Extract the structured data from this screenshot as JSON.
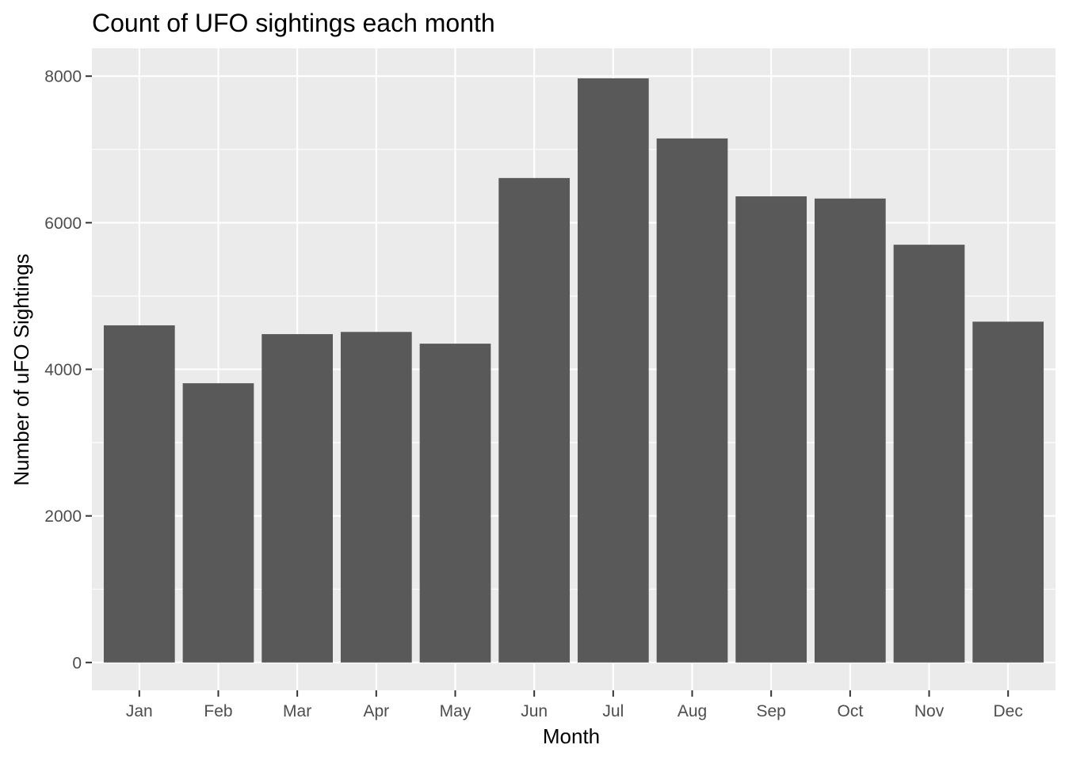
{
  "chart_data": {
    "type": "bar",
    "title": "Count of UFO sightings each month",
    "xlabel": "Month",
    "ylabel": "Number of uFO Sightings",
    "categories": [
      "Jan",
      "Feb",
      "Mar",
      "Apr",
      "May",
      "Jun",
      "Jul",
      "Aug",
      "Sep",
      "Oct",
      "Nov",
      "Dec"
    ],
    "values": [
      4600,
      3810,
      4480,
      4510,
      4350,
      6610,
      7970,
      7150,
      6360,
      6330,
      5700,
      4650
    ],
    "yticks": [
      0,
      2000,
      4000,
      6000,
      8000
    ],
    "ylim": [
      -380,
      8380
    ],
    "grid": true,
    "legend": "none",
    "colors": {
      "bar": "#595959",
      "panel": "#ebebeb",
      "grid": "#ffffff"
    }
  }
}
